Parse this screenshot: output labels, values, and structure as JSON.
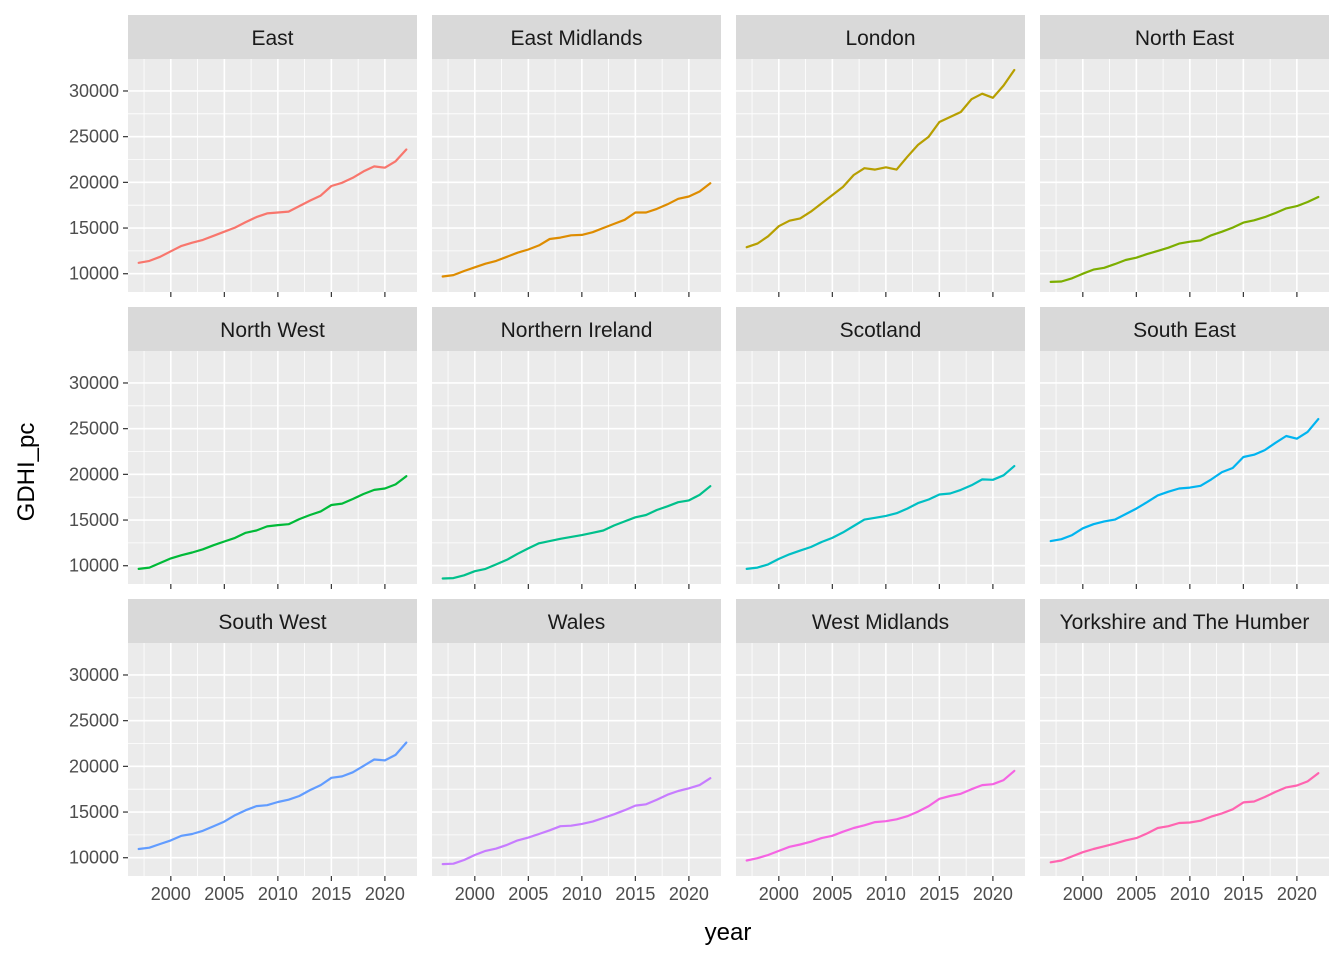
{
  "chart_data": {
    "type": "line",
    "layout": "facet_wrap",
    "xlabel": "year",
    "ylabel": "GDHI_pc",
    "xlim": [
      1996,
      2023
    ],
    "ylim": [
      8000,
      33500
    ],
    "x_ticks": [
      2000,
      2005,
      2010,
      2015,
      2020
    ],
    "x_tick_labels": [
      "2000",
      "2005",
      "2010",
      "2015",
      "2020"
    ],
    "y_ticks": [
      10000,
      15000,
      20000,
      25000,
      30000
    ],
    "y_tick_labels": [
      "10000",
      "15000",
      "20000",
      "25000",
      "30000"
    ],
    "grid": true,
    "x": [
      1997,
      1998,
      1999,
      2000,
      2001,
      2002,
      2003,
      2004,
      2005,
      2006,
      2007,
      2008,
      2009,
      2010,
      2011,
      2012,
      2013,
      2014,
      2015,
      2016,
      2017,
      2018,
      2019,
      2020,
      2021,
      2022
    ],
    "series": [
      {
        "name": "East",
        "color": "#F8766D",
        "values": [
          11200,
          11400,
          11850,
          12450,
          13050,
          13400,
          13700,
          14150,
          14600,
          15050,
          15650,
          16200,
          16600,
          16700,
          16800,
          17400,
          18000,
          18550,
          19600,
          19950,
          20500,
          21200,
          21750,
          21600,
          22300,
          23600
        ]
      },
      {
        "name": "East Midlands",
        "color": "#DE8C00",
        "values": [
          9700,
          9850,
          10300,
          10700,
          11100,
          11400,
          11850,
          12300,
          12650,
          13100,
          13800,
          13950,
          14200,
          14250,
          14550,
          15000,
          15450,
          15900,
          16700,
          16700,
          17100,
          17600,
          18200,
          18450,
          19000,
          19900
        ]
      },
      {
        "name": "London",
        "color": "#B79F00",
        "values": [
          12900,
          13300,
          14100,
          15200,
          15800,
          16050,
          16800,
          17700,
          18600,
          19500,
          20800,
          21550,
          21400,
          21650,
          21400,
          22800,
          24100,
          25000,
          26600,
          27150,
          27700,
          29100,
          29700,
          29250,
          30600,
          32300
        ]
      },
      {
        "name": "North East",
        "color": "#7CAE00",
        "values": [
          9100,
          9150,
          9500,
          10000,
          10450,
          10650,
          11050,
          11500,
          11750,
          12150,
          12500,
          12850,
          13300,
          13500,
          13650,
          14200,
          14600,
          15050,
          15600,
          15850,
          16200,
          16650,
          17150,
          17400,
          17850,
          18400
        ]
      },
      {
        "name": "North West",
        "color": "#00BA38",
        "values": [
          9650,
          9800,
          10300,
          10800,
          11150,
          11450,
          11800,
          12250,
          12650,
          13050,
          13600,
          13850,
          14300,
          14450,
          14550,
          15100,
          15550,
          15950,
          16650,
          16800,
          17300,
          17850,
          18300,
          18450,
          18900,
          19800
        ]
      },
      {
        "name": "Northern Ireland",
        "color": "#00C08B",
        "values": [
          8600,
          8650,
          8950,
          9400,
          9650,
          10150,
          10650,
          11300,
          11900,
          12450,
          12700,
          12950,
          13150,
          13350,
          13600,
          13850,
          14400,
          14850,
          15300,
          15550,
          16100,
          16500,
          16950,
          17150,
          17750,
          18700
        ]
      },
      {
        "name": "Scotland",
        "color": "#00BFC4",
        "values": [
          9650,
          9800,
          10150,
          10750,
          11250,
          11650,
          12050,
          12600,
          13050,
          13650,
          14350,
          15050,
          15250,
          15450,
          15750,
          16250,
          16850,
          17250,
          17800,
          17900,
          18300,
          18800,
          19450,
          19400,
          19900,
          20900
        ]
      },
      {
        "name": "South East",
        "color": "#00B4F0",
        "values": [
          12700,
          12900,
          13350,
          14100,
          14550,
          14850,
          15050,
          15650,
          16250,
          16950,
          17700,
          18100,
          18450,
          18550,
          18750,
          19450,
          20250,
          20700,
          21900,
          22150,
          22650,
          23450,
          24200,
          23900,
          24650,
          26050
        ]
      },
      {
        "name": "South West",
        "color": "#619CFF",
        "values": [
          10950,
          11100,
          11500,
          11900,
          12400,
          12600,
          12950,
          13450,
          13950,
          14650,
          15200,
          15650,
          15750,
          16100,
          16350,
          16750,
          17400,
          17950,
          18750,
          18900,
          19350,
          20050,
          20750,
          20650,
          21250,
          22600
        ]
      },
      {
        "name": "Wales",
        "color": "#C77CFF",
        "values": [
          9300,
          9350,
          9750,
          10300,
          10750,
          11000,
          11400,
          11900,
          12200,
          12600,
          13000,
          13450,
          13500,
          13700,
          13950,
          14350,
          14750,
          15200,
          15700,
          15850,
          16350,
          16900,
          17300,
          17600,
          17950,
          18700
        ]
      },
      {
        "name": "West Midlands",
        "color": "#F564E3",
        "values": [
          9700,
          9950,
          10300,
          10750,
          11200,
          11450,
          11750,
          12150,
          12400,
          12850,
          13250,
          13550,
          13900,
          14000,
          14200,
          14550,
          15050,
          15650,
          16450,
          16750,
          17000,
          17500,
          17950,
          18050,
          18500,
          19500
        ]
      },
      {
        "name": "Yorkshire and The Humber",
        "color": "#FF64B0",
        "values": [
          9500,
          9700,
          10150,
          10600,
          10950,
          11250,
          11550,
          11900,
          12150,
          12650,
          13250,
          13450,
          13800,
          13850,
          14050,
          14500,
          14850,
          15300,
          16050,
          16150,
          16650,
          17200,
          17700,
          17900,
          18350,
          19250
        ]
      }
    ]
  }
}
